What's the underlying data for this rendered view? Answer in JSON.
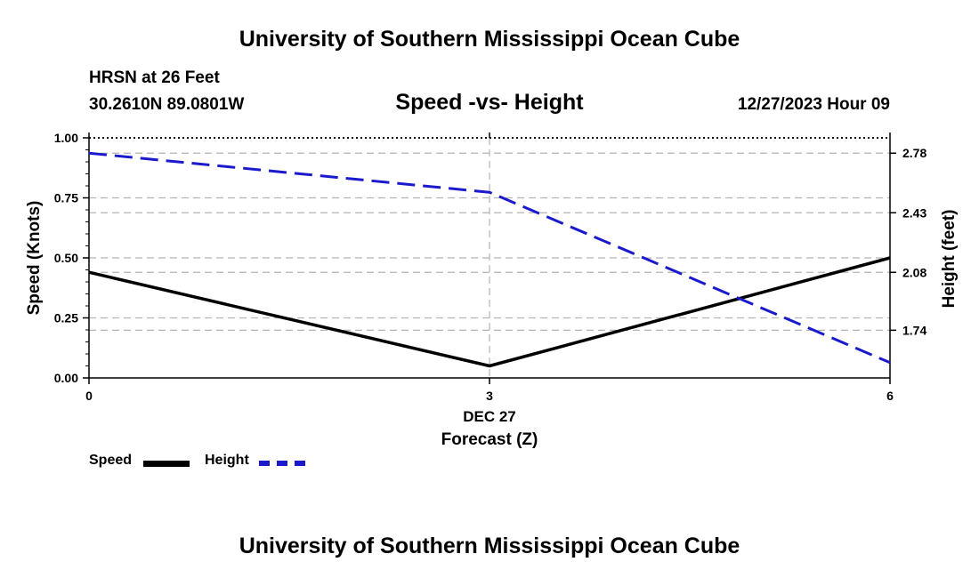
{
  "header": {
    "title": "University of Southern Mississippi Ocean Cube",
    "station": "HRSN at 26 Feet",
    "coords": "30.2610N  89.0801W",
    "subtitle": "Speed -vs- Height",
    "datetime": "12/27/2023 Hour 09"
  },
  "footer": {
    "title": "University of Southern Mississippi Ocean Cube"
  },
  "legend": {
    "speed_label": "Speed",
    "height_label": "Height"
  },
  "chart_data": {
    "type": "line",
    "title": "Speed -vs- Height",
    "xlabel": "Forecast (Z)",
    "x_date_label": "DEC 27",
    "ylabel_left": "Speed (Knots)",
    "ylabel_right": "Height (feet)",
    "x": [
      0,
      3,
      6
    ],
    "x_tick_labels": [
      "0",
      "3",
      "6"
    ],
    "xlim": [
      0,
      6
    ],
    "ylim_left": [
      0,
      1
    ],
    "y_left_ticks": [
      "0.00",
      "0.25",
      "0.50",
      "0.75",
      "1.00"
    ],
    "ylim_right": [
      1.46,
      2.87
    ],
    "y_right_ticks": [
      "1.74",
      "2.08",
      "2.43",
      "2.78"
    ],
    "grid": true,
    "series": [
      {
        "name": "Speed",
        "axis": "left",
        "color": "#000000",
        "dash": "solid",
        "values": [
          0.44,
          0.05,
          0.5
        ]
      },
      {
        "name": "Height",
        "axis": "right",
        "color": "#1a1acc",
        "dash": "dashed",
        "values": [
          2.78,
          2.55,
          1.55
        ]
      }
    ]
  }
}
